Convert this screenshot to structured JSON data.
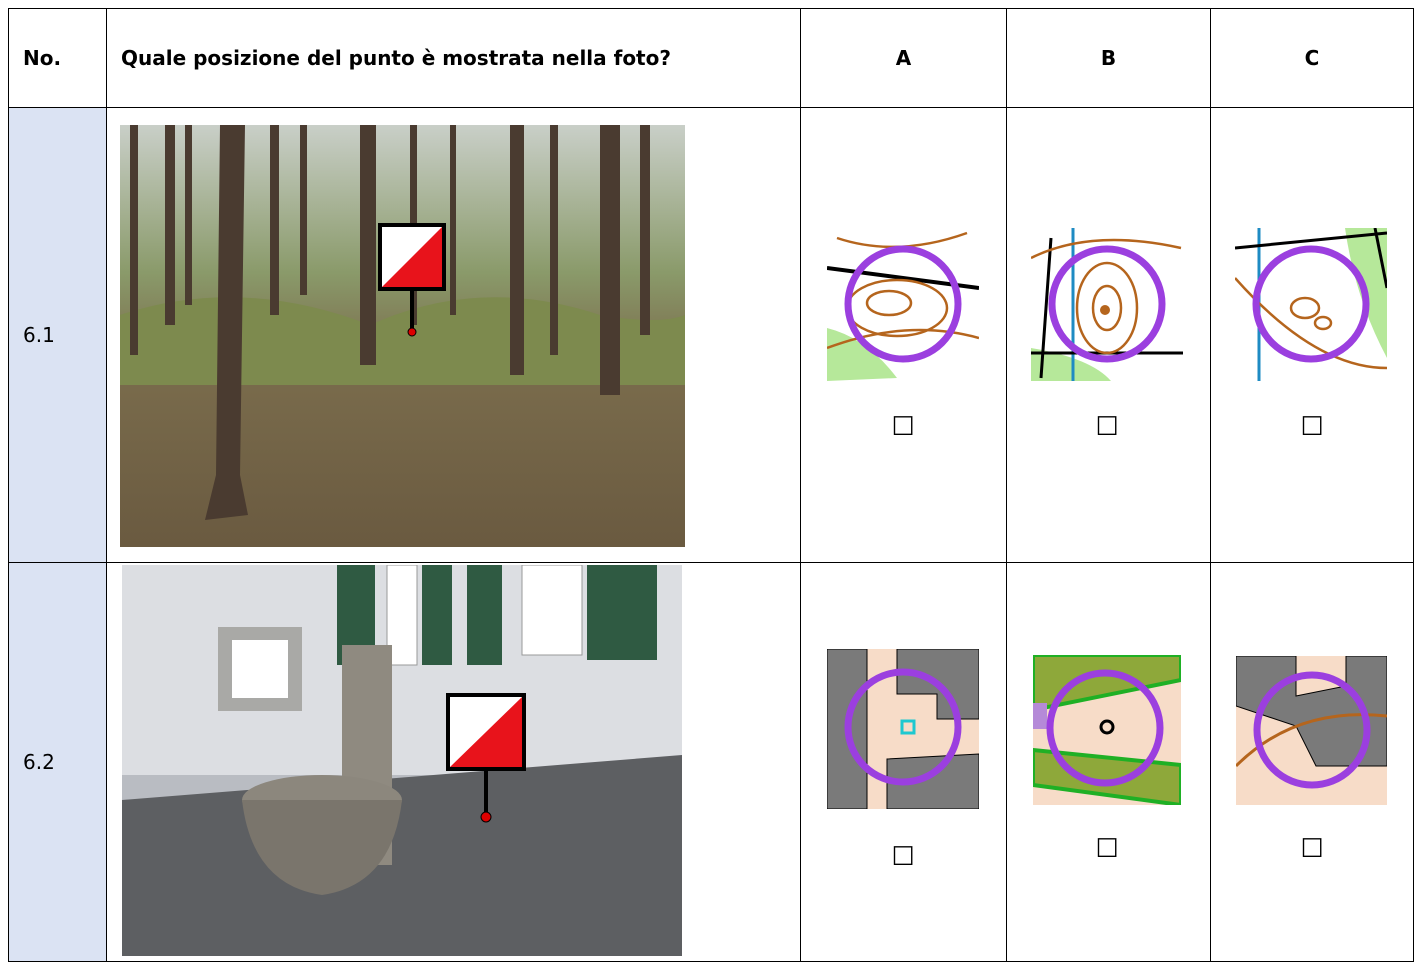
{
  "table": {
    "header": [
      "No.",
      "Quale posizione del punto è mostrata nella foto?",
      "A",
      "B",
      "C"
    ],
    "rows": [
      {
        "number": "6.1",
        "options": [
          "☐",
          "☐",
          "☐"
        ]
      },
      {
        "number": "6.2",
        "options": [
          "☐",
          "☐",
          "☐"
        ]
      }
    ]
  }
}
